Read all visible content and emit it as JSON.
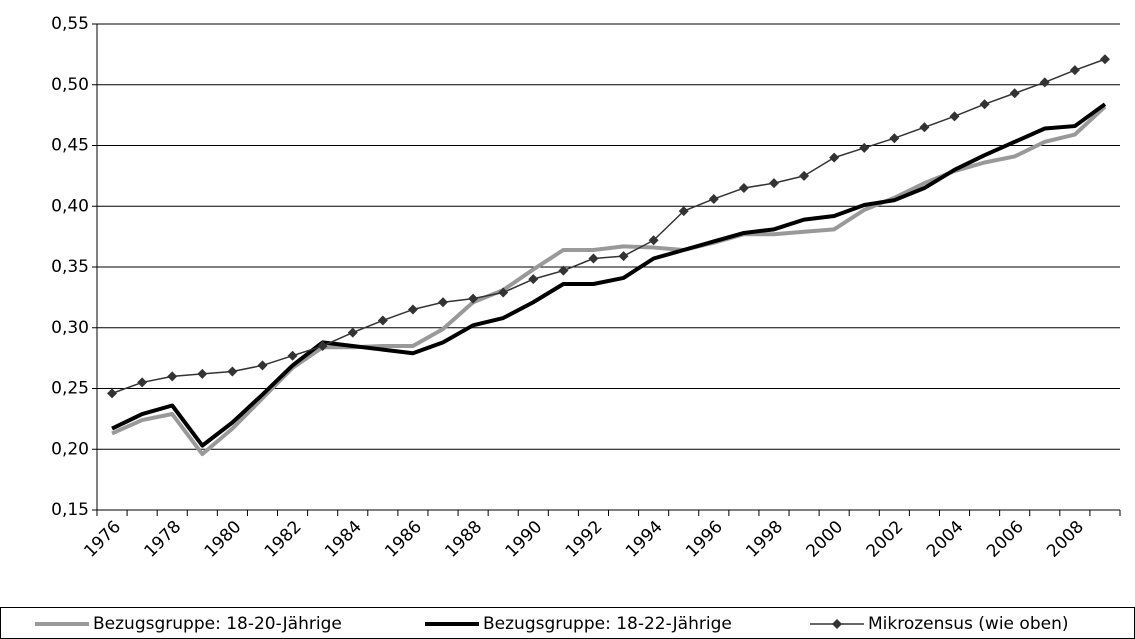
{
  "chart_data": {
    "type": "line",
    "categories": [
      "1976",
      null,
      "1978",
      null,
      "1980",
      null,
      "1982",
      null,
      "1984",
      null,
      "1986",
      null,
      "1988",
      null,
      "1990",
      null,
      "1992",
      null,
      "1994",
      null,
      "1996",
      null,
      "1998",
      null,
      "2000",
      null,
      "2002",
      null,
      "2004",
      null,
      "2006",
      null,
      "2008",
      null
    ],
    "series": [
      {
        "name": "Bezugsgruppe: 18-20-Jährige",
        "color": "#999999",
        "width": 4,
        "marker": null,
        "values": [
          0.213,
          0.224,
          0.229,
          0.196,
          0.217,
          0.242,
          0.267,
          0.284,
          0.284,
          0.285,
          0.285,
          0.299,
          0.321,
          0.331,
          0.348,
          0.364,
          0.364,
          0.367,
          0.366,
          0.364,
          0.37,
          0.377,
          0.377,
          0.379,
          0.381,
          0.397,
          0.407,
          0.419,
          0.429,
          0.436,
          0.441,
          0.453,
          0.459,
          0.482
        ]
      },
      {
        "name": "Bezugsgruppe: 18-22-Jährige",
        "color": "#000000",
        "width": 4,
        "marker": null,
        "values": [
          0.217,
          0.229,
          0.236,
          0.203,
          0.222,
          0.245,
          0.269,
          0.288,
          0.285,
          0.282,
          0.279,
          0.288,
          0.302,
          0.308,
          0.321,
          0.336,
          0.336,
          0.341,
          0.357,
          0.364,
          0.371,
          0.378,
          0.381,
          0.389,
          0.392,
          0.401,
          0.405,
          0.415,
          0.43,
          0.442,
          0.453,
          0.464,
          0.466,
          0.484
        ]
      },
      {
        "name": "Mikrozensus (wie oben)",
        "color": "#333333",
        "width": 1.5,
        "marker": "diamond",
        "values": [
          0.246,
          0.255,
          0.26,
          0.262,
          0.264,
          0.269,
          0.277,
          0.285,
          0.296,
          0.306,
          0.315,
          0.321,
          0.324,
          0.329,
          0.34,
          0.347,
          0.357,
          0.359,
          0.372,
          0.396,
          0.406,
          0.415,
          0.419,
          0.425,
          0.44,
          0.448,
          0.456,
          0.465,
          0.474,
          0.484,
          0.493,
          0.502,
          0.512,
          0.521
        ]
      }
    ],
    "ylim": [
      0.15,
      0.55
    ],
    "yticks": [
      {
        "value": 0.15,
        "label": "0,15"
      },
      {
        "value": 0.2,
        "label": "0,20"
      },
      {
        "value": 0.25,
        "label": "0,25"
      },
      {
        "value": 0.3,
        "label": "0,30"
      },
      {
        "value": 0.35,
        "label": "0,35"
      },
      {
        "value": 0.4,
        "label": "0,40"
      },
      {
        "value": 0.45,
        "label": "0,45"
      },
      {
        "value": 0.5,
        "label": "0,50"
      },
      {
        "value": 0.55,
        "label": "0,55"
      }
    ],
    "grid": true,
    "legend": "bottom"
  }
}
